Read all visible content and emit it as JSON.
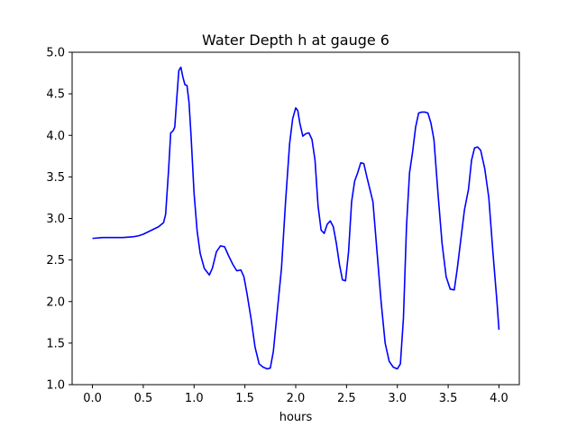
{
  "chart_data": {
    "type": "line",
    "title": "Water Depth h at gauge 6",
    "xlabel": "hours",
    "ylabel": "",
    "xlim": [
      -0.2,
      4.2
    ],
    "ylim": [
      1.0,
      5.0
    ],
    "xticks": [
      0.0,
      0.5,
      1.0,
      1.5,
      2.0,
      2.5,
      3.0,
      3.5,
      4.0
    ],
    "xtick_labels": [
      "0.0",
      "0.5",
      "1.0",
      "1.5",
      "2.0",
      "2.5",
      "3.0",
      "3.5",
      "4.0"
    ],
    "yticks": [
      1.0,
      1.5,
      2.0,
      2.5,
      3.0,
      3.5,
      4.0,
      4.5,
      5.0
    ],
    "ytick_labels": [
      "1.0",
      "1.5",
      "2.0",
      "2.5",
      "3.0",
      "3.5",
      "4.0",
      "4.5",
      "5.0"
    ],
    "grid": false,
    "colors": {
      "line": "#0000ff",
      "axes": "#000000",
      "background": "#ffffff"
    },
    "series": [
      {
        "x": [
          0.0,
          0.1,
          0.2,
          0.3,
          0.4,
          0.45,
          0.5,
          0.55,
          0.6,
          0.65,
          0.7,
          0.72,
          0.75,
          0.77,
          0.79,
          0.8,
          0.81,
          0.83,
          0.85,
          0.87,
          0.89,
          0.91,
          0.93,
          0.95,
          0.97,
          1.0,
          1.03,
          1.06,
          1.1,
          1.15,
          1.18,
          1.22,
          1.26,
          1.3,
          1.34,
          1.38,
          1.42,
          1.46,
          1.49,
          1.52,
          1.56,
          1.6,
          1.64,
          1.68,
          1.72,
          1.75,
          1.78,
          1.82,
          1.86,
          1.9,
          1.94,
          1.97,
          2.0,
          2.02,
          2.04,
          2.07,
          2.1,
          2.13,
          2.16,
          2.19,
          2.22,
          2.25,
          2.28,
          2.31,
          2.34,
          2.37,
          2.4,
          2.43,
          2.46,
          2.49,
          2.52,
          2.55,
          2.58,
          2.61,
          2.64,
          2.67,
          2.7,
          2.73,
          2.76,
          2.8,
          2.84,
          2.88,
          2.92,
          2.96,
          3.0,
          3.03,
          3.06,
          3.09,
          3.12,
          3.15,
          3.18,
          3.21,
          3.24,
          3.27,
          3.3,
          3.33,
          3.36,
          3.4,
          3.44,
          3.48,
          3.52,
          3.56,
          3.59,
          3.62,
          3.66,
          3.7,
          3.73,
          3.76,
          3.79,
          3.82,
          3.86,
          3.9,
          3.94,
          3.98,
          4.0
        ],
        "y": [
          2.76,
          2.77,
          2.77,
          2.77,
          2.78,
          2.79,
          2.81,
          2.84,
          2.87,
          2.9,
          2.95,
          3.05,
          3.6,
          4.03,
          4.05,
          4.07,
          4.1,
          4.45,
          4.78,
          4.82,
          4.7,
          4.61,
          4.6,
          4.4,
          4.0,
          3.3,
          2.85,
          2.58,
          2.4,
          2.32,
          2.4,
          2.6,
          2.67,
          2.66,
          2.55,
          2.45,
          2.37,
          2.38,
          2.3,
          2.1,
          1.8,
          1.45,
          1.25,
          1.21,
          1.19,
          1.2,
          1.4,
          1.9,
          2.4,
          3.2,
          3.9,
          4.2,
          4.33,
          4.3,
          4.15,
          3.99,
          4.02,
          4.03,
          3.95,
          3.7,
          3.15,
          2.86,
          2.82,
          2.93,
          2.97,
          2.9,
          2.7,
          2.45,
          2.26,
          2.25,
          2.6,
          3.2,
          3.45,
          3.55,
          3.67,
          3.66,
          3.5,
          3.35,
          3.2,
          2.6,
          2.0,
          1.5,
          1.28,
          1.21,
          1.19,
          1.25,
          1.8,
          2.9,
          3.55,
          3.8,
          4.1,
          4.27,
          4.28,
          4.28,
          4.27,
          4.15,
          3.95,
          3.3,
          2.7,
          2.3,
          2.15,
          2.14,
          2.4,
          2.7,
          3.1,
          3.35,
          3.7,
          3.85,
          3.86,
          3.82,
          3.6,
          3.25,
          2.6,
          2.0,
          1.66
        ]
      }
    ]
  }
}
